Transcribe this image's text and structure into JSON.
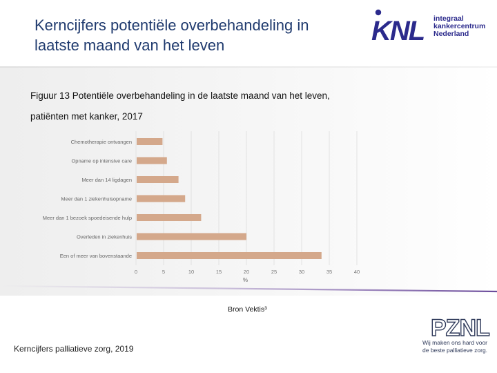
{
  "slide": {
    "title_line1": "Kerncijfers potentiële overbehandeling in",
    "title_line2": "laatste maand van het leven",
    "caption_line1": "Figuur 13 Potentiële overbehandeling in de laatste maand van het leven,",
    "caption_line2": "patiënten met kanker, 2017",
    "source": "Bron Vektis³",
    "footer": "Kerncijfers palliatieve zorg, 2019"
  },
  "logos": {
    "knl_mark": "KNL",
    "knl_line1": "integraal",
    "knl_line2": "kankercentrum",
    "knl_line3": "Nederland",
    "pznl_mark": "PZNL",
    "pznl_line1": "Wij maken ons hard voor",
    "pznl_line2": "de beste palliatieve zorg."
  },
  "colors": {
    "title": "#1f3a6e",
    "bar": "#d4a88b",
    "knl_blue": "#2b2a8c",
    "accent_purple": "#7a5aa8"
  },
  "chart_data": {
    "type": "bar",
    "orientation": "horizontal",
    "title": "",
    "xlabel": "%",
    "ylabel": "",
    "xlim": [
      0,
      40
    ],
    "xticks": [
      0,
      5,
      10,
      15,
      20,
      25,
      30,
      35,
      40
    ],
    "xtick_labels": [
      "0",
      "5",
      "10",
      "15",
      "20",
      "25",
      "30",
      "35",
      "40"
    ],
    "grid": true,
    "categories": [
      "Chemotherapie ontvangen",
      "Opname op intensive care",
      "Meer dan 14 ligdagen",
      "Meer dan 1 ziekenhuisopname",
      "Meer dan 1 bezoek spoedeisende hulp",
      "Overleden in ziekenhuis",
      "Een of meer van bovenstaande"
    ],
    "values": [
      4.8,
      5.6,
      7.7,
      8.9,
      11.8,
      20.0,
      33.6
    ]
  }
}
